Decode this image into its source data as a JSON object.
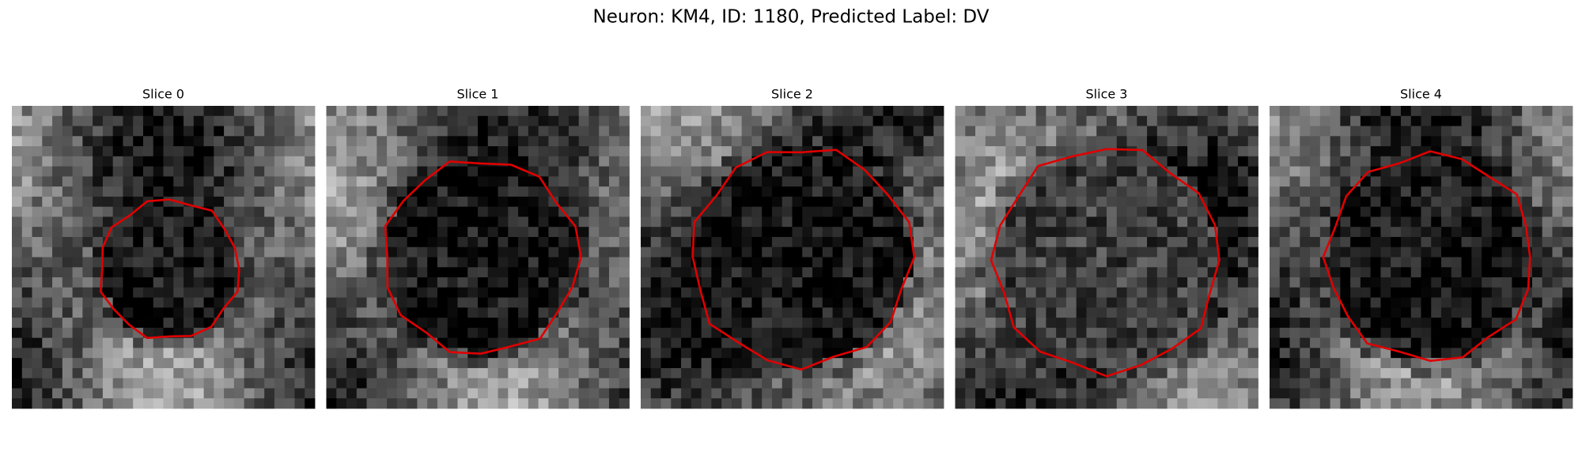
{
  "title": "Neuron: KM4, ID: 1180, Predicted Label: DV",
  "panels": [
    {
      "title": "Slice 0"
    },
    {
      "title": "Slice 1"
    },
    {
      "title": "Slice 2"
    },
    {
      "title": "Slice 3"
    },
    {
      "title": "Slice 4"
    }
  ]
}
